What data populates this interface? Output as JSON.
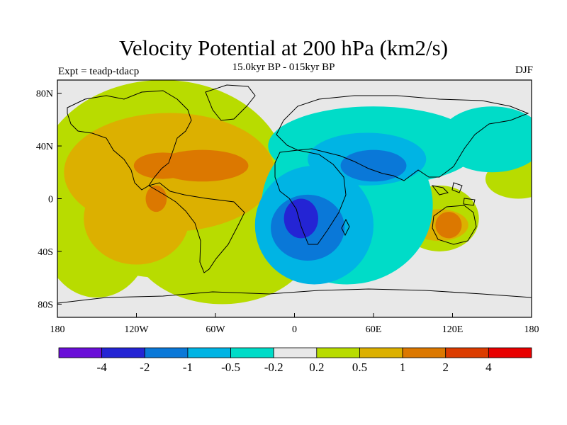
{
  "title": "Velocity Potential at 200 hPa (km2/s)",
  "subtitle": "15.0kyr BP - 015kyr BP",
  "experiment": "Expt = teadp-tdacp",
  "season": "DJF",
  "map": {
    "projection": "cylindrical-equidistant",
    "lon_range": [
      -180,
      180
    ],
    "lat_range": [
      -90,
      90
    ],
    "background_color": "#e8e8e8",
    "x_ticks": [
      {
        "lon": -180,
        "label": "180"
      },
      {
        "lon": -120,
        "label": "120W"
      },
      {
        "lon": -60,
        "label": "60W"
      },
      {
        "lon": 0,
        "label": "0"
      },
      {
        "lon": 60,
        "label": "60E"
      },
      {
        "lon": 120,
        "label": "120E"
      },
      {
        "lon": 180,
        "label": "180"
      }
    ],
    "y_ticks": [
      {
        "lat": 80,
        "label": "80N"
      },
      {
        "lat": 40,
        "label": "40N"
      },
      {
        "lat": 0,
        "label": "0"
      },
      {
        "lat": -40,
        "label": "40S"
      },
      {
        "lat": -80,
        "label": "80S"
      }
    ]
  },
  "colorbar": {
    "colors": [
      "#6a0fd8",
      "#2424d4",
      "#0a78d8",
      "#00b4e4",
      "#00dcc8",
      "#e8e8e8",
      "#b8dc00",
      "#dcb000",
      "#dc7800",
      "#dc3c00",
      "#e80000"
    ],
    "labels": [
      "-4",
      "-2",
      "-1",
      "-0.5",
      "-0.2",
      "0.2",
      "0.5",
      "1",
      "2",
      "4"
    ]
  },
  "fields": [
    {
      "level": 6,
      "blobs": [
        {
          "lon": -100,
          "lat": 15,
          "rlon": 95,
          "rlat": 75
        },
        {
          "lon": -55,
          "lat": -30,
          "rlon": 70,
          "rlat": 50
        },
        {
          "lon": -150,
          "lat": -30,
          "rlon": 40,
          "rlat": 45
        },
        {
          "lon": 110,
          "lat": -15,
          "rlon": 30,
          "rlat": 25
        },
        {
          "lon": 170,
          "lat": 15,
          "rlon": 25,
          "rlat": 15
        }
      ]
    },
    {
      "level": 7,
      "blobs": [
        {
          "lon": -95,
          "lat": 20,
          "rlon": 80,
          "rlat": 45
        },
        {
          "lon": -120,
          "lat": -15,
          "rlon": 40,
          "rlat": 35
        },
        {
          "lon": 110,
          "lat": -20,
          "rlon": 22,
          "rlat": 12
        }
      ]
    },
    {
      "level": 8,
      "blobs": [
        {
          "lon": -70,
          "lat": 25,
          "rlon": 35,
          "rlat": 12
        },
        {
          "lon": -100,
          "lat": 25,
          "rlon": 22,
          "rlat": 10
        },
        {
          "lon": -105,
          "lat": 0,
          "rlon": 8,
          "rlat": 10
        },
        {
          "lon": 117,
          "lat": -20,
          "rlon": 10,
          "rlat": 10
        }
      ]
    },
    {
      "level": 4,
      "blobs": [
        {
          "lon": 40,
          "lat": -5,
          "rlon": 65,
          "rlat": 60
        },
        {
          "lon": 60,
          "lat": 40,
          "rlon": 80,
          "rlat": 30
        },
        {
          "lon": 150,
          "lat": 45,
          "rlon": 40,
          "rlat": 25
        }
      ]
    },
    {
      "level": 3,
      "blobs": [
        {
          "lon": 15,
          "lat": -20,
          "rlon": 45,
          "rlat": 45
        },
        {
          "lon": 55,
          "lat": 30,
          "rlon": 45,
          "rlat": 20
        }
      ]
    },
    {
      "level": 2,
      "blobs": [
        {
          "lon": 10,
          "lat": -22,
          "rlon": 28,
          "rlat": 25
        },
        {
          "lon": 60,
          "lat": 25,
          "rlon": 25,
          "rlat": 12
        }
      ]
    },
    {
      "level": 1,
      "blobs": [
        {
          "lon": 5,
          "lat": -15,
          "rlon": 13,
          "rlat": 15
        }
      ]
    }
  ]
}
